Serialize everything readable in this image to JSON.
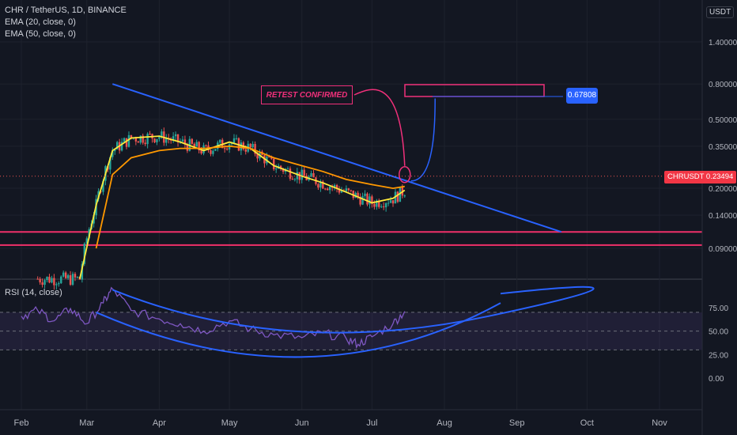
{
  "legend": {
    "symbol": "CHR / TetherUS, 1D, BINANCE",
    "ema20": "EMA (20, close, 0)",
    "ema50": "EMA (50, close, 0)"
  },
  "currency": "USDT",
  "rsi_title": "RSI (14, close)",
  "annotation": "RETEST CONFIRMED",
  "price_tag": "0.67808",
  "symbol_tag": "CHRUSDT",
  "symbol_price": "0.23494",
  "colors": {
    "background": "#131722",
    "up": "#26a69a",
    "down": "#ef5350",
    "ema20": "#ffeb3b",
    "ema50": "#ff9800",
    "trendline": "#2962ff",
    "support": "#f0306a",
    "rsi": "#7e57c2",
    "annotation": "#f0307a",
    "price_tag": "#2962ff",
    "symbol_tag": "#f23645"
  },
  "chart_data": [
    {
      "type": "candlestick",
      "price_scale": "log",
      "y_ticks": [
        "1.40000",
        "0.80000",
        "0.50000",
        "0.35000",
        "0.20000",
        "0.14000",
        "0.09000"
      ],
      "x_ticks": [
        "Feb",
        "Mar",
        "Apr",
        "May",
        "Jun",
        "Jul",
        "Aug",
        "Sep",
        "Oct",
        "Nov"
      ],
      "last_price": 0.23494,
      "target_price": 0.67808,
      "support_levels": [
        0.112,
        0.094
      ],
      "trendline": {
        "from": [
          "Mar 12",
          0.8
        ],
        "to": [
          "Sep 20",
          0.112
        ]
      },
      "series": [
        {
          "name": "EMA (20, close, 0)",
          "x": [
            "Feb 26",
            "Mar 5",
            "Mar 12",
            "Mar 20",
            "Apr 1",
            "Apr 10",
            "Apr 20",
            "May 1",
            "May 10",
            "May 20",
            "Jun 1",
            "Jun 10",
            "Jun 20",
            "Jul 1",
            "Jul 10",
            "Jul 15"
          ],
          "values": [
            0.06,
            0.16,
            0.33,
            0.39,
            0.4,
            0.37,
            0.33,
            0.37,
            0.34,
            0.27,
            0.235,
            0.215,
            0.19,
            0.165,
            0.175,
            0.195
          ]
        },
        {
          "name": "EMA (50, close, 0)",
          "x": [
            "Mar 5",
            "Mar 12",
            "Mar 20",
            "Apr 1",
            "Apr 10",
            "Apr 20",
            "May 1",
            "May 10",
            "May 20",
            "Jun 1",
            "Jun 10",
            "Jun 20",
            "Jul 1",
            "Jul 10",
            "Jul 15"
          ],
          "values": [
            0.09,
            0.24,
            0.3,
            0.33,
            0.34,
            0.34,
            0.35,
            0.34,
            0.3,
            0.27,
            0.25,
            0.225,
            0.21,
            0.2,
            0.205
          ]
        }
      ]
    },
    {
      "type": "line",
      "y_ticks": [
        "75.00",
        "50.00",
        "25.00",
        "0.00"
      ],
      "ylim": [
        0,
        100
      ],
      "bands": [
        70,
        50,
        30
      ],
      "series": [
        {
          "name": "RSI (14, close)",
          "x": [
            "Feb 1",
            "Feb 8",
            "Feb 15",
            "Feb 22",
            "Mar 1",
            "Mar 8",
            "Mar 12",
            "Mar 20",
            "Apr 1",
            "Apr 10",
            "Apr 20",
            "May 1",
            "May 10",
            "May 20",
            "Jun 1",
            "Jun 10",
            "Jun 20",
            "Jun 25",
            "Jul 1",
            "Jul 10",
            "Jul 15"
          ],
          "values": [
            66,
            72,
            61,
            74,
            58,
            80,
            95,
            72,
            63,
            58,
            50,
            61,
            52,
            46,
            43,
            48,
            42,
            36,
            44,
            58,
            71
          ]
        }
      ]
    }
  ]
}
